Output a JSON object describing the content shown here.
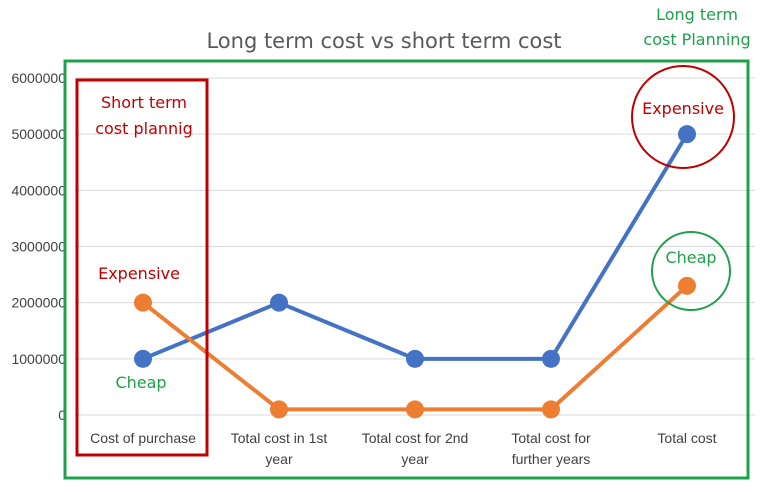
{
  "chart_data": {
    "type": "line",
    "title": "Long term cost vs short term cost",
    "xlabel": "",
    "ylabel": "",
    "categories": [
      [
        "Cost of purchase"
      ],
      [
        "Total cost in 1st",
        "year"
      ],
      [
        "Total cost for 2nd",
        "year"
      ],
      [
        "Total cost for",
        "further years"
      ],
      [
        "Total cost"
      ]
    ],
    "ylim": [
      0,
      6000000
    ],
    "yticks": [
      "0",
      "1000000",
      "2000000",
      "3000000",
      "4000000",
      "5000000",
      "6000000"
    ],
    "grid": true,
    "legend": "none",
    "series": [
      {
        "color": "#4472C4",
        "values": [
          1000000,
          2000000,
          1000000,
          1000000,
          5000000
        ]
      },
      {
        "color": "#ED7D31",
        "values": [
          2000000,
          100000,
          100000,
          100000,
          2300000
        ]
      }
    ]
  },
  "annotations": {
    "short_term_box": {
      "lines": [
        "Short term",
        "cost plannig"
      ],
      "color": "#C00000"
    },
    "long_term_box": {
      "lines": [
        "Long term",
        "cost Planning"
      ],
      "color": "#1FA04B"
    },
    "purchase_expensive": {
      "text": "Expensive",
      "color": "#C00000"
    },
    "purchase_cheap": {
      "text": "Cheap",
      "color": "#1FA04B"
    },
    "total_expensive": {
      "text": "Expensive",
      "color": "#C00000"
    },
    "total_cheap": {
      "text": "Cheap",
      "color": "#1FA04B"
    }
  }
}
